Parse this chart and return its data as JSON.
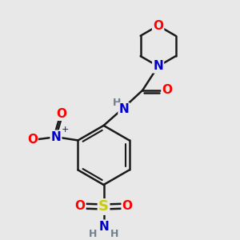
{
  "background_color": "#e8e8e8",
  "atom_colors": {
    "C": "#000000",
    "H": "#708090",
    "N": "#0000cd",
    "O": "#ff0000",
    "S": "#cccc00"
  },
  "bond_color": "#1a1a1a",
  "bond_width": 1.8,
  "fig_width": 3.0,
  "fig_height": 3.0,
  "dpi": 100
}
